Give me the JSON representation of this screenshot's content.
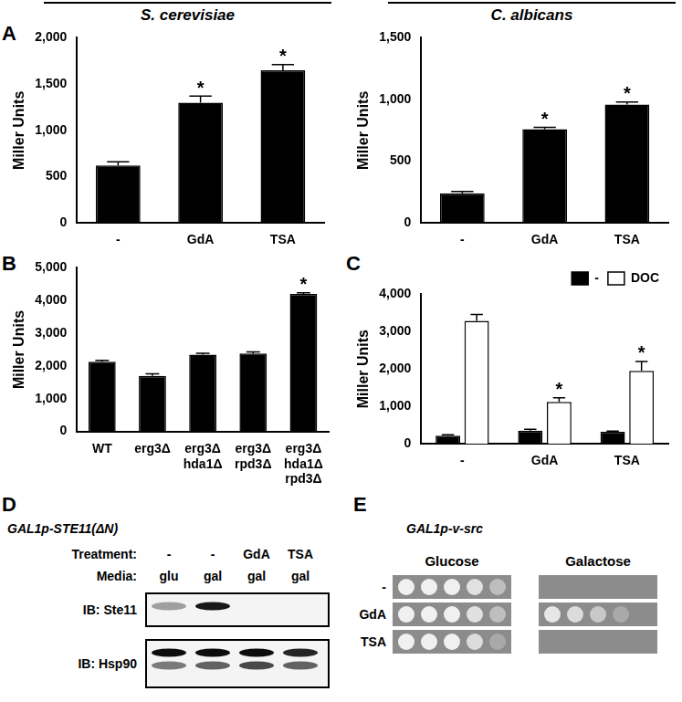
{
  "chart_data": [
    {
      "type": "bar",
      "panel": "A",
      "title": "S. cerevisiae",
      "y_label": "Miller Units",
      "categories": [
        "-",
        "GdA",
        "TSA"
      ],
      "values": [
        620,
        1300,
        1650
      ],
      "errors": [
        40,
        70,
        60
      ],
      "color": "#000000",
      "ylim": [
        0,
        2000
      ],
      "yticks": [
        0,
        500,
        1000,
        1500,
        2000
      ],
      "grid": false,
      "annotations": [
        {
          "category": "GdA",
          "text": "*"
        },
        {
          "category": "TSA",
          "text": "*"
        }
      ]
    },
    {
      "type": "bar",
      "title": "C. albicans",
      "y_label": "Miller Units",
      "categories": [
        "-",
        "GdA",
        "TSA"
      ],
      "values": [
        240,
        760,
        960
      ],
      "errors": [
        15,
        15,
        20
      ],
      "color": "#000000",
      "ylim": [
        0,
        1500
      ],
      "yticks": [
        0,
        500,
        1000,
        1500
      ],
      "grid": false,
      "annotations": [
        {
          "category": "GdA",
          "text": "*"
        },
        {
          "category": "TSA",
          "text": "*"
        }
      ]
    },
    {
      "type": "bar",
      "panel": "B",
      "y_label": "Miller Units",
      "categories": [
        "WT",
        "erg3Δ",
        [
          "erg3Δ",
          "hda1Δ"
        ],
        [
          "erg3Δ",
          "rpd3Δ"
        ],
        [
          "erg3Δ",
          "hda1Δ",
          "rpd3Δ"
        ]
      ],
      "values": [
        2130,
        1700,
        2350,
        2380,
        4200
      ],
      "errors": [
        40,
        60,
        40,
        50,
        40
      ],
      "color": "#000000",
      "ylim": [
        0,
        5000
      ],
      "yticks": [
        0,
        1000,
        2000,
        3000,
        4000,
        5000
      ],
      "grid": false,
      "annotations": [
        {
          "category": [
            "erg3Δ",
            "hda1Δ",
            "rpd3Δ"
          ],
          "text": "*"
        }
      ]
    },
    {
      "type": "bar",
      "panel": "C",
      "y_label": "Miller Units",
      "categories": [
        "-",
        "GdA",
        "TSA"
      ],
      "series": [
        {
          "name": "-",
          "color": "#000000",
          "values": [
            220,
            350,
            320
          ],
          "errors": [
            20,
            40,
            20
          ]
        },
        {
          "name": "DOC",
          "color": "#ffffff",
          "values": [
            3280,
            1120,
            1950
          ],
          "errors": [
            170,
            110,
            250
          ]
        }
      ],
      "ylim": [
        0,
        4000
      ],
      "yticks": [
        0,
        1000,
        2000,
        3000,
        4000
      ],
      "grid": false,
      "legend": "top-right",
      "annotations": [
        {
          "category": "GdA",
          "series": "DOC",
          "text": "*"
        },
        {
          "category": "TSA",
          "series": "DOC",
          "text": "*"
        }
      ]
    }
  ],
  "blot": {
    "panel": "D",
    "title": "GAL1p-STE11(ΔN)",
    "row_headers": [
      "Treatment:",
      "Media:"
    ],
    "lanes": [
      {
        "treatment": "-",
        "media": "glu"
      },
      {
        "treatment": "-",
        "media": "gal"
      },
      {
        "treatment": "GdA",
        "media": "gal"
      },
      {
        "treatment": "TSA",
        "media": "gal"
      }
    ],
    "blots": [
      {
        "label": "IB: Ste11",
        "band_rows": [
          [
            0.35,
            0.9,
            0,
            0
          ]
        ]
      },
      {
        "label": "IB: Hsp90",
        "band_rows": [
          [
            0.95,
            0.95,
            0.95,
            0.85
          ],
          [
            0.5,
            0.6,
            0.7,
            0.6
          ]
        ]
      }
    ]
  },
  "spot_assay": {
    "panel": "E",
    "title": "GAL1p-v-src",
    "treatments": [
      "-",
      "GdA",
      "TSA"
    ],
    "media": [
      {
        "name": "Glucose",
        "growth": [
          [
            1,
            1,
            1,
            0.85,
            0.5
          ],
          [
            1,
            1,
            1,
            0.85,
            0.5
          ],
          [
            1,
            1,
            1,
            0.8,
            0.3
          ]
        ]
      },
      {
        "name": "Galactose",
        "growth": [
          [
            0,
            0,
            0,
            0,
            0
          ],
          [
            0.9,
            0.8,
            0.6,
            0.3,
            0
          ],
          [
            0,
            0,
            0,
            0,
            0
          ]
        ]
      }
    ]
  }
}
